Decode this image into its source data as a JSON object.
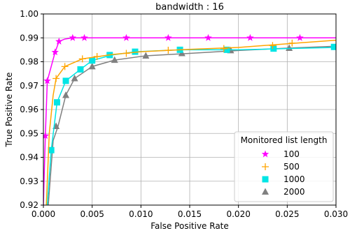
{
  "chart_data": {
    "type": "line",
    "title": "bandwidth : 16",
    "xlabel": "False Positive Rate",
    "ylabel": "True Positive Rate",
    "xlim": [
      0,
      0.03
    ],
    "ylim": [
      0.92,
      1.0
    ],
    "x_ticks": [
      "0.000",
      "0.005",
      "0.010",
      "0.015",
      "0.020",
      "0.025",
      "0.030"
    ],
    "y_ticks": [
      "0.92",
      "0.93",
      "0.94",
      "0.95",
      "0.96",
      "0.97",
      "0.98",
      "0.99",
      "1.00"
    ],
    "x_tick_values": [
      0,
      0.005,
      0.01,
      0.015,
      0.02,
      0.025,
      0.03
    ],
    "y_tick_values": [
      0.92,
      0.93,
      0.94,
      0.95,
      0.96,
      0.97,
      0.98,
      0.99,
      1.0
    ],
    "grid": true,
    "legend": {
      "title": "Monitored list length",
      "placement": "lower-right"
    },
    "series": [
      {
        "name": "100",
        "color": "#ff00ff",
        "marker": "star",
        "line": [
          [
            0,
            0.92
          ],
          [
            0.0001,
            0.935
          ],
          [
            0.0002,
            0.949
          ],
          [
            0.0004,
            0.972
          ],
          [
            0.0008,
            0.978
          ],
          [
            0.0012,
            0.984
          ],
          [
            0.0016,
            0.9885
          ],
          [
            0.0022,
            0.9895
          ],
          [
            0.003,
            0.99
          ],
          [
            0.01,
            0.99
          ],
          [
            0.02,
            0.99
          ],
          [
            0.03,
            0.99
          ]
        ],
        "markers": [
          [
            0.0002,
            0.949
          ],
          [
            0.0004,
            0.972
          ],
          [
            0.0012,
            0.984
          ],
          [
            0.0016,
            0.9885
          ],
          [
            0.003,
            0.99
          ],
          [
            0.0042,
            0.99
          ],
          [
            0.0085,
            0.99
          ],
          [
            0.0128,
            0.99
          ],
          [
            0.0169,
            0.99
          ],
          [
            0.0212,
            0.99
          ],
          [
            0.0263,
            0.99
          ]
        ]
      },
      {
        "name": "500",
        "color": "#ffa500",
        "marker": "plus",
        "line": [
          [
            0.0003,
            0.92
          ],
          [
            0.0006,
            0.95
          ],
          [
            0.001,
            0.966
          ],
          [
            0.0013,
            0.973
          ],
          [
            0.0022,
            0.978
          ],
          [
            0.004,
            0.9812
          ],
          [
            0.007,
            0.983
          ],
          [
            0.01,
            0.9842
          ],
          [
            0.015,
            0.9852
          ],
          [
            0.02,
            0.986
          ],
          [
            0.025,
            0.9875
          ],
          [
            0.03,
            0.989
          ]
        ],
        "markers": [
          [
            0.0013,
            0.973
          ],
          [
            0.0022,
            0.978
          ],
          [
            0.004,
            0.9812
          ],
          [
            0.0055,
            0.9822
          ],
          [
            0.0085,
            0.9835
          ],
          [
            0.0128,
            0.9848
          ],
          [
            0.0185,
            0.9855
          ],
          [
            0.0235,
            0.9868
          ],
          [
            0.0255,
            0.9878
          ]
        ]
      },
      {
        "name": "1000",
        "color": "#00e5e5",
        "marker": "square",
        "line": [
          [
            0.0004,
            0.92
          ],
          [
            0.0008,
            0.943
          ],
          [
            0.0014,
            0.963
          ],
          [
            0.0023,
            0.972
          ],
          [
            0.0038,
            0.9768
          ],
          [
            0.005,
            0.9805
          ],
          [
            0.007,
            0.9828
          ],
          [
            0.0095,
            0.9842
          ],
          [
            0.014,
            0.985
          ],
          [
            0.02,
            0.985
          ],
          [
            0.025,
            0.9855
          ],
          [
            0.03,
            0.986
          ]
        ],
        "markers": [
          [
            0.0008,
            0.943
          ],
          [
            0.0014,
            0.963
          ],
          [
            0.0023,
            0.972
          ],
          [
            0.0038,
            0.9768
          ],
          [
            0.005,
            0.9805
          ],
          [
            0.0068,
            0.9828
          ],
          [
            0.0094,
            0.9842
          ],
          [
            0.014,
            0.985
          ],
          [
            0.0188,
            0.985
          ],
          [
            0.0236,
            0.9855
          ],
          [
            0.0298,
            0.9862
          ]
        ]
      },
      {
        "name": "2000",
        "color": "#808080",
        "marker": "triangle",
        "line": [
          [
            0.0005,
            0.92
          ],
          [
            0.001,
            0.947
          ],
          [
            0.0015,
            0.953
          ],
          [
            0.0023,
            0.966
          ],
          [
            0.0032,
            0.973
          ],
          [
            0.005,
            0.978
          ],
          [
            0.0073,
            0.9807
          ],
          [
            0.0105,
            0.9825
          ],
          [
            0.015,
            0.9835
          ],
          [
            0.02,
            0.9847
          ],
          [
            0.025,
            0.9857
          ],
          [
            0.03,
            0.9865
          ]
        ],
        "markers": [
          [
            0.0013,
            0.953
          ],
          [
            0.0023,
            0.966
          ],
          [
            0.0032,
            0.973
          ],
          [
            0.005,
            0.978
          ],
          [
            0.0073,
            0.9807
          ],
          [
            0.0105,
            0.9825
          ],
          [
            0.0142,
            0.9835
          ],
          [
            0.0192,
            0.9847
          ],
          [
            0.0252,
            0.9857
          ]
        ]
      }
    ]
  }
}
